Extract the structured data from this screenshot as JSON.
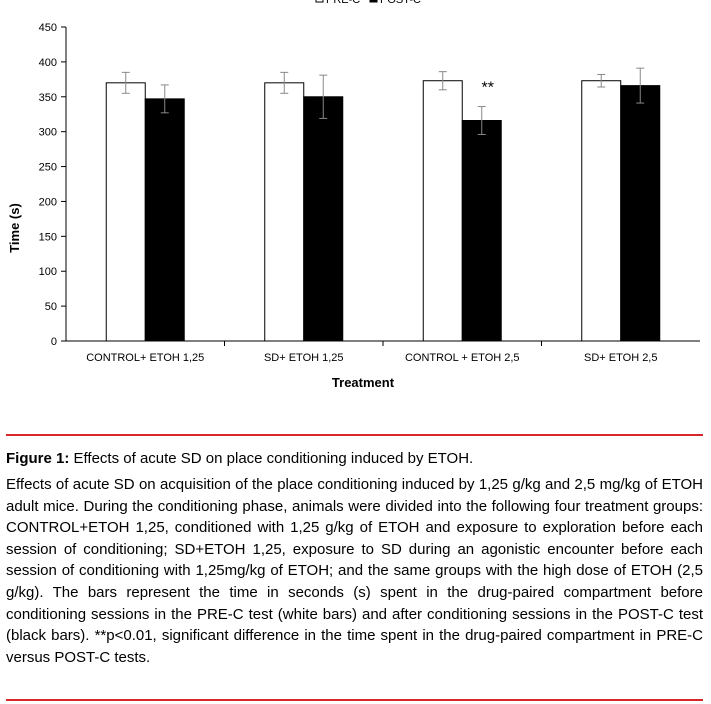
{
  "chart_data": {
    "type": "bar",
    "title": "",
    "xlabel": "Treatment",
    "ylabel": "Time (s)",
    "ylim": [
      0,
      450
    ],
    "yticks": [
      0,
      50,
      100,
      150,
      200,
      250,
      300,
      350,
      400,
      450
    ],
    "grid": false,
    "legend_position": "top-center",
    "categories": [
      "CONTROL+ ETOH 1,25",
      "SD+ ETOH 1,25",
      "CONTROL + ETOH 2,5",
      "SD+ ETOH 2,5"
    ],
    "series": [
      {
        "name": "PRE-C",
        "color": "#ffffff",
        "values": [
          370,
          370,
          373,
          373
        ],
        "errors": [
          15,
          15,
          13,
          9
        ]
      },
      {
        "name": "POST-C",
        "color": "#000000",
        "values": [
          347,
          350,
          316,
          366
        ],
        "errors": [
          20,
          31,
          20,
          25
        ]
      }
    ],
    "annotations": [
      {
        "category_index": 2,
        "series_index": 1,
        "text": "**"
      }
    ]
  },
  "caption": {
    "label": "Figure 1:",
    "title": "Effects of acute SD on place conditioning induced by ETOH.",
    "body": "Effects of acute SD on acquisition of the place conditioning induced by 1,25 g/kg and 2,5 mg/kg of ETOH adult mice. During the conditioning phase, animals were divided into the following four treatment groups: CONTROL+ETOH 1,25, conditioned with 1,25 g/kg of ETOH and exposure to exploration before each session of conditioning; SD+ETOH 1,25, exposure to SD during an agonistic encounter before each session of conditioning with 1,25mg/kg of ETOH; and the same groups with the high dose of ETOH (2,5 g/kg). The bars represent the time in seconds (s) spent in the drug-paired compartment before conditioning sessions in the PRE-C test (white bars) and after conditioning sessions in the POST-C test (black bars). **p<0.01, significant difference in the time spent in the drug-paired compartment in PRE-C versus POST-C tests."
  },
  "colors": {
    "rule": "#d9262b"
  }
}
